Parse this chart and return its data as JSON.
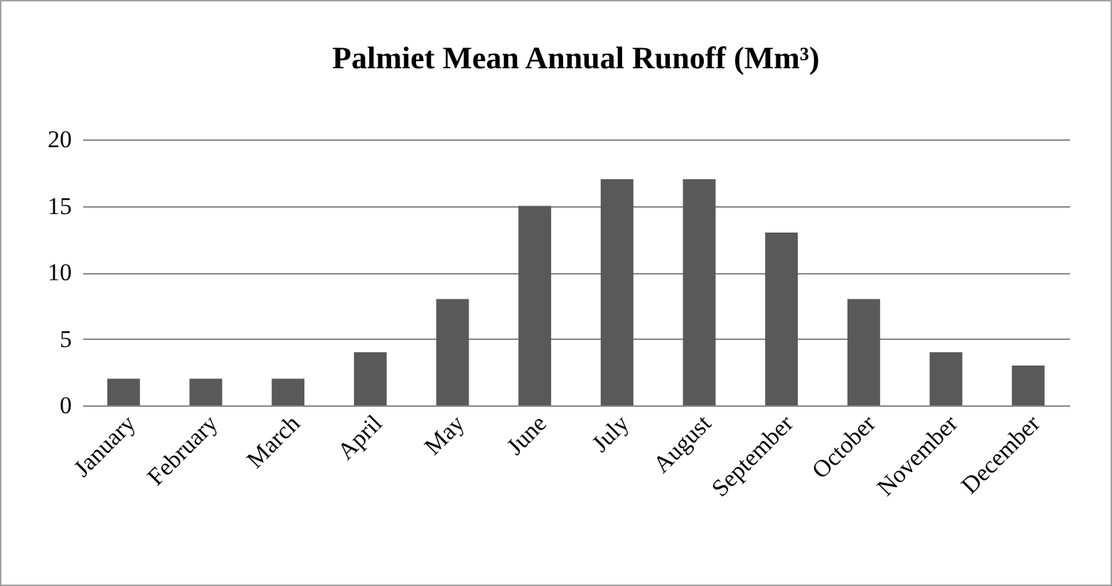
{
  "chart_data": {
    "type": "bar",
    "title": "Palmiet Mean Annual Runoff (Mm³)",
    "categories": [
      "January",
      "February",
      "March",
      "April",
      "May",
      "June",
      "July",
      "August",
      "September",
      "October",
      "November",
      "December"
    ],
    "values": [
      2,
      2,
      2,
      4,
      8,
      15,
      17,
      17,
      13,
      8,
      4,
      3
    ],
    "color": "#595959",
    "ylim": [
      0,
      20
    ],
    "yticks": [
      0,
      5,
      10,
      15,
      20
    ],
    "grid": "y"
  }
}
